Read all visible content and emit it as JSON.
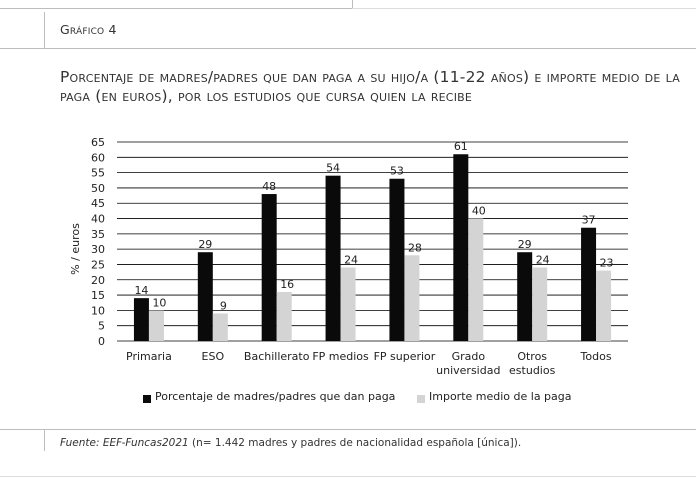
{
  "figure_label": "Gráfico 4",
  "title": "Porcentaje de madres/padres que dan paga a su hijo/a (11-22 años) e importe medio de la paga (en euros), por los estudios que cursa quien la recibe",
  "source": {
    "label": "Fuente: EEF-Funcas2021",
    "text": " (n= 1.442 madres y padres de nacionalidad española [única])."
  },
  "colors": {
    "series1": "#0a0a0a",
    "series2": "#d4d4d4",
    "grid": "#000000",
    "text": "#222222"
  },
  "chart_data": {
    "type": "bar",
    "ylabel": "% / euros",
    "xlabel": "",
    "ylim": [
      0,
      65
    ],
    "yticks": [
      0,
      5,
      10,
      15,
      20,
      25,
      30,
      35,
      40,
      45,
      50,
      55,
      60,
      65
    ],
    "grid": true,
    "legend_position": "bottom",
    "categories": [
      [
        "Primaria"
      ],
      [
        "ESO"
      ],
      [
        "Bachillerato"
      ],
      [
        "FP medios"
      ],
      [
        "FP superior"
      ],
      [
        "Grado",
        "universidad"
      ],
      [
        "Otros",
        "estudios"
      ],
      [
        "Todos"
      ]
    ],
    "series": [
      {
        "name": "Porcentaje de madres/padres que dan paga",
        "values": [
          14,
          29,
          48,
          54,
          53,
          61,
          29,
          37
        ]
      },
      {
        "name": "Importe medio de la paga",
        "values": [
          10,
          9,
          16,
          24,
          28,
          40,
          24,
          23
        ]
      }
    ]
  }
}
